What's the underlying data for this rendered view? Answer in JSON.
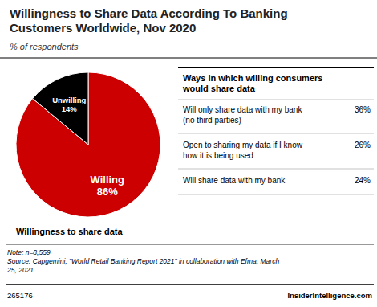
{
  "chart_data": {
    "type": "pie",
    "title": "Willingness to Share Data According To Banking\nCustomers Worldwide, Nov 2020",
    "subtitle": "% of respondents",
    "categories": [
      "Willing",
      "Unwilling"
    ],
    "values": [
      86,
      14
    ],
    "value_labels": [
      "86%",
      "14%"
    ],
    "colors": [
      "#cc0000",
      "#000000"
    ],
    "data_labels": true,
    "caption": "Willingness to share data",
    "table": {
      "title": "Ways in which willing consumers\nwould share data",
      "labels": [
        "Will only share data with my bank\n(no third parties)",
        "Open to sharing my data if I know\nhow it is being used",
        "Will share data with my bank"
      ],
      "values": [
        36,
        26,
        24
      ],
      "value_labels": [
        "36%",
        "26%",
        "24%"
      ]
    },
    "notes": [
      "Note: n=8,559",
      "Source: Capgemini, \"World Retail Banking Report 2021\" in collaboration with Efma, March",
      "25, 2021"
    ],
    "footer": [
      "265176",
      "InsiderIntelligence.com"
    ]
  }
}
